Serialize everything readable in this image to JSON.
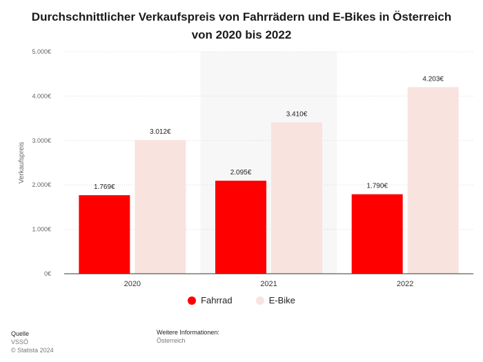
{
  "chart_data": {
    "type": "bar",
    "title": "Durchschnittlicher Verkaufspreis von Fahrrädern und E-Bikes in Österreich von 2020 bis 2022",
    "ylabel": "Verkaufspreis",
    "xlabel": "",
    "categories": [
      "2020",
      "2021",
      "2022"
    ],
    "series": [
      {
        "name": "Fahrrad",
        "values": [
          1769,
          2095,
          1790
        ],
        "labels": [
          "1.769€",
          "2.095€",
          "1.790€"
        ],
        "color": "#ff0000"
      },
      {
        "name": "E-Bike",
        "values": [
          3012,
          3410,
          4203
        ],
        "labels": [
          "3.012€",
          "3.410€",
          "4.203€"
        ],
        "color": "#f9e3df"
      }
    ],
    "ylim": [
      0,
      5000
    ],
    "yticks": [
      {
        "value": 0,
        "label": "0€"
      },
      {
        "value": 1000,
        "label": "1.000€"
      },
      {
        "value": 2000,
        "label": "2.000€"
      },
      {
        "value": 3000,
        "label": "3.000€"
      },
      {
        "value": 4000,
        "label": "4.000€"
      },
      {
        "value": 5000,
        "label": "5.000€"
      }
    ],
    "highlighted_category": "2021",
    "grid": true,
    "legend": "bottom-center"
  },
  "footer": {
    "source_heading": "Quelle",
    "source_name": "VSSÖ",
    "copyright": "© Statista 2024",
    "info_heading": "Weitere Informationen:",
    "info_text": "Österreich"
  }
}
